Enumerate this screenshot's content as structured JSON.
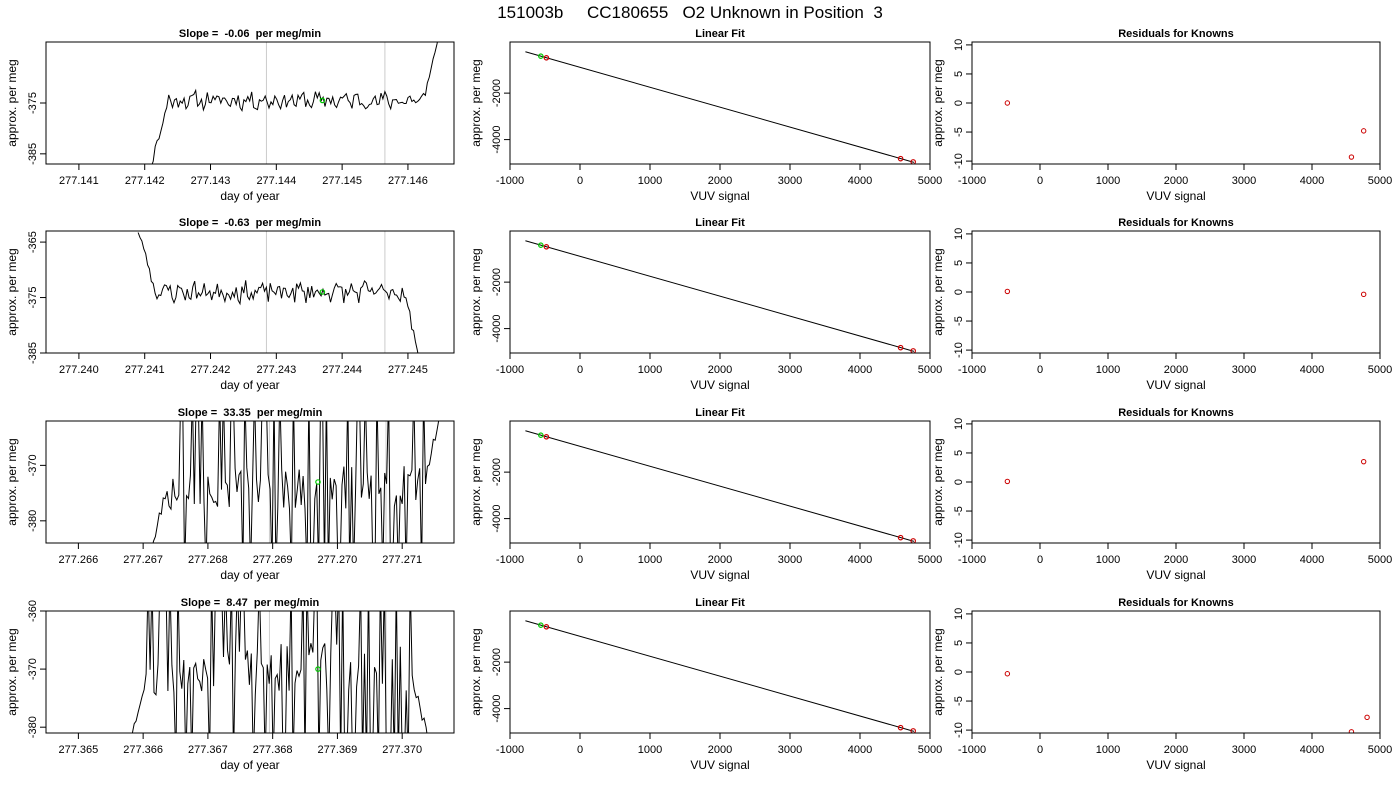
{
  "title": "151003b     CC180655   O2 Unknown in Position  3",
  "colors": {
    "trace": "#000000",
    "unknown_point": "#00cc00",
    "known_point": "#cc0000",
    "guide_lines": "#cccccc",
    "frame": "#000000"
  },
  "chart_data": [
    {
      "type": "line",
      "panel": "raw-1",
      "title": "Slope =  -0.06  per meg/min",
      "xlabel": "day of year",
      "ylabel": "approx. per meg",
      "xlim": [
        277.1405,
        277.1467
      ],
      "ylim": [
        -387,
        -363
      ],
      "xticks": [
        277.141,
        277.142,
        277.143,
        277.144,
        277.145,
        277.146
      ],
      "yticks": [
        -375,
        -385
      ],
      "vlines": [
        277.14385,
        277.14565
      ],
      "marker": {
        "x": 277.1447,
        "y": -374.5
      },
      "seed": 11,
      "series_type": "smooth",
      "base": -374.5,
      "amp": 1.5,
      "start_window": 277.1421,
      "end_window": 277.1465,
      "start_y": -387,
      "end_y": -361
    },
    {
      "type": "line",
      "panel": "raw-2",
      "title": "Slope =  -0.63  per meg/min",
      "xlabel": "day of year",
      "ylabel": "approx. per meg",
      "xlim": [
        277.2395,
        277.2457
      ],
      "ylim": [
        -385,
        -363
      ],
      "xticks": [
        277.24,
        277.241,
        277.242,
        277.243,
        277.244,
        277.245
      ],
      "yticks": [
        -365,
        -375,
        -385
      ],
      "vlines": [
        277.24285,
        277.24465
      ],
      "marker": {
        "x": 277.2437,
        "y": -374.0
      },
      "seed": 23,
      "series_type": "smooth",
      "base": -374.0,
      "amp": 1.6,
      "start_window": 277.2409,
      "end_window": 277.2452,
      "start_y": -363,
      "end_y": -387
    },
    {
      "type": "line",
      "panel": "raw-3",
      "title": "Slope =  33.35  per meg/min",
      "xlabel": "day of year",
      "ylabel": "approx. per meg",
      "xlim": [
        277.2655,
        277.2718
      ],
      "ylim": [
        -384,
        -362
      ],
      "xticks": [
        277.266,
        277.267,
        277.268,
        277.269,
        277.27,
        277.271
      ],
      "yticks": [
        -370,
        -380
      ],
      "vlines": [
        277.26895,
        277.27075
      ],
      "marker": {
        "x": 277.2697,
        "y": -373.0
      },
      "seed": 37,
      "series_type": "noisy",
      "base": -374.0,
      "amp": 4.0,
      "start_window": 277.2671,
      "end_window": 277.2716,
      "start_y": -386,
      "end_y": -360
    },
    {
      "type": "line",
      "panel": "raw-4",
      "title": "Slope =  8.47  per meg/min",
      "xlabel": "day of year",
      "ylabel": "approx. per meg",
      "xlim": [
        277.3645,
        277.3708
      ],
      "ylim": [
        -381,
        -360
      ],
      "xticks": [
        277.365,
        277.366,
        277.367,
        277.368,
        277.369,
        277.37
      ],
      "yticks": [
        -360,
        -370,
        -380
      ],
      "vlines": [
        277.36795,
        277.36975
      ],
      "marker": {
        "x": 277.3687,
        "y": -370.0
      },
      "seed": 53,
      "series_type": "noisy",
      "base": -370.0,
      "amp": 4.5,
      "start_window": 277.3658,
      "end_window": 277.3704,
      "start_y": -382,
      "end_y": -382
    },
    {
      "type": "scatter",
      "panel": "fit-1",
      "title": "Linear Fit",
      "xlabel": "VUV signal",
      "ylabel": "approx. per meg",
      "xlim": [
        -1000,
        5000
      ],
      "ylim": [
        -5050,
        200
      ],
      "xticks": [
        -1000,
        0,
        1000,
        2000,
        3000,
        4000,
        5000
      ],
      "yticks": [
        -2000,
        -4000
      ],
      "line": {
        "x": [
          -780,
          4770
        ],
        "y": [
          -220,
          -4980
        ]
      },
      "points": [
        {
          "x": -560,
          "y": -410,
          "kind": "unknown"
        },
        {
          "x": -480,
          "y": -480,
          "kind": "known"
        },
        {
          "x": 4580,
          "y": -4820,
          "kind": "known"
        },
        {
          "x": 4760,
          "y": -4960,
          "kind": "known"
        }
      ]
    },
    {
      "type": "scatter",
      "panel": "fit-2",
      "title": "Linear Fit",
      "xlabel": "VUV signal",
      "ylabel": "approx. per meg",
      "xlim": [
        -1000,
        5000
      ],
      "ylim": [
        -5050,
        200
      ],
      "xticks": [
        -1000,
        0,
        1000,
        2000,
        3000,
        4000,
        5000
      ],
      "yticks": [
        -2000,
        -4000
      ],
      "line": {
        "x": [
          -780,
          4770
        ],
        "y": [
          -220,
          -4980
        ]
      },
      "points": [
        {
          "x": -560,
          "y": -410,
          "kind": "unknown"
        },
        {
          "x": -480,
          "y": -480,
          "kind": "known"
        },
        {
          "x": 4580,
          "y": -4820,
          "kind": "known"
        },
        {
          "x": 4760,
          "y": -4960,
          "kind": "known"
        }
      ]
    },
    {
      "type": "scatter",
      "panel": "fit-3",
      "title": "Linear Fit",
      "xlabel": "VUV signal",
      "ylabel": "approx. per meg",
      "xlim": [
        -1000,
        5000
      ],
      "ylim": [
        -5050,
        200
      ],
      "xticks": [
        -1000,
        0,
        1000,
        2000,
        3000,
        4000,
        5000
      ],
      "yticks": [
        -2000,
        -4000
      ],
      "line": {
        "x": [
          -780,
          4770
        ],
        "y": [
          -220,
          -4980
        ]
      },
      "points": [
        {
          "x": -560,
          "y": -410,
          "kind": "unknown"
        },
        {
          "x": -480,
          "y": -480,
          "kind": "known"
        },
        {
          "x": 4580,
          "y": -4820,
          "kind": "known"
        },
        {
          "x": 4760,
          "y": -4960,
          "kind": "known"
        }
      ]
    },
    {
      "type": "scatter",
      "panel": "fit-4",
      "title": "Linear Fit",
      "xlabel": "VUV signal",
      "ylabel": "approx. per meg",
      "xlim": [
        -1000,
        5000
      ],
      "ylim": [
        -5050,
        200
      ],
      "xticks": [
        -1000,
        0,
        1000,
        2000,
        3000,
        4000,
        5000
      ],
      "yticks": [
        -2000,
        -4000
      ],
      "line": {
        "x": [
          -780,
          4770
        ],
        "y": [
          -220,
          -4980
        ]
      },
      "points": [
        {
          "x": -560,
          "y": -410,
          "kind": "unknown"
        },
        {
          "x": -480,
          "y": -480,
          "kind": "known"
        },
        {
          "x": 4580,
          "y": -4820,
          "kind": "known"
        },
        {
          "x": 4760,
          "y": -4960,
          "kind": "known"
        }
      ]
    },
    {
      "type": "scatter",
      "panel": "resid-1",
      "title": "Residuals for Knowns",
      "xlabel": "VUV signal",
      "ylabel": "approx. per meg",
      "xlim": [
        -1000,
        5000
      ],
      "ylim": [
        -10.5,
        10.5
      ],
      "xticks": [
        -1000,
        0,
        1000,
        2000,
        3000,
        4000,
        5000
      ],
      "yticks": [
        10,
        5,
        0,
        -5,
        -10
      ],
      "points": [
        {
          "x": -480,
          "y": 0.0
        },
        {
          "x": 4580,
          "y": -9.3
        },
        {
          "x": 4760,
          "y": -4.8
        }
      ]
    },
    {
      "type": "scatter",
      "panel": "resid-2",
      "title": "Residuals for Knowns",
      "xlabel": "VUV signal",
      "ylabel": "approx. per meg",
      "xlim": [
        -1000,
        5000
      ],
      "ylim": [
        -10.5,
        10.5
      ],
      "xticks": [
        -1000,
        0,
        1000,
        2000,
        3000,
        4000,
        5000
      ],
      "yticks": [
        10,
        5,
        0,
        -5,
        -10
      ],
      "points": [
        {
          "x": -480,
          "y": 0.1
        },
        {
          "x": 4760,
          "y": -0.4
        }
      ]
    },
    {
      "type": "scatter",
      "panel": "resid-3",
      "title": "Residuals for Knowns",
      "xlabel": "VUV signal",
      "ylabel": "approx. per meg",
      "xlim": [
        -1000,
        5000
      ],
      "ylim": [
        -10.5,
        10.5
      ],
      "xticks": [
        -1000,
        0,
        1000,
        2000,
        3000,
        4000,
        5000
      ],
      "yticks": [
        10,
        5,
        0,
        -5,
        -10
      ],
      "points": [
        {
          "x": -480,
          "y": 0.1
        },
        {
          "x": 4760,
          "y": 3.5
        }
      ]
    },
    {
      "type": "scatter",
      "panel": "resid-4",
      "title": "Residuals for Knowns",
      "xlabel": "VUV signal",
      "ylabel": "approx. per meg",
      "xlim": [
        -1000,
        5000
      ],
      "ylim": [
        -10.5,
        10.5
      ],
      "xticks": [
        -1000,
        0,
        1000,
        2000,
        3000,
        4000,
        5000
      ],
      "yticks": [
        10,
        5,
        0,
        -5,
        -10
      ],
      "points": [
        {
          "x": -480,
          "y": -0.3
        },
        {
          "x": 4580,
          "y": -10.3
        },
        {
          "x": 4810,
          "y": -7.8
        }
      ]
    }
  ]
}
